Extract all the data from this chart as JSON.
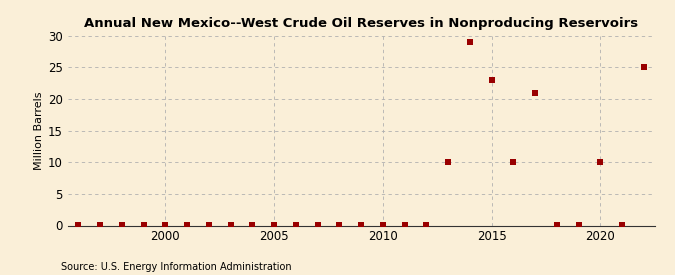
{
  "title": "Annual New Mexico--West Crude Oil Reserves in Nonproducing Reservoirs",
  "ylabel": "Million Barrels",
  "source": "Source: U.S. Energy Information Administration",
  "background_color": "#faefd8",
  "plot_bg_color": "#faefd8",
  "grid_color": "#b0b0b0",
  "marker_color": "#990000",
  "xlim": [
    1995.5,
    2022.5
  ],
  "ylim": [
    0,
    30
  ],
  "yticks": [
    0,
    5,
    10,
    15,
    20,
    25,
    30
  ],
  "xticks": [
    2000,
    2005,
    2010,
    2015,
    2020
  ],
  "years": [
    1996,
    1997,
    1998,
    1999,
    2000,
    2001,
    2002,
    2003,
    2004,
    2005,
    2006,
    2007,
    2008,
    2009,
    2010,
    2011,
    2012,
    2013,
    2014,
    2015,
    2016,
    2017,
    2018,
    2019,
    2020,
    2021,
    2022
  ],
  "values": [
    0.05,
    0.05,
    0.05,
    0.05,
    0.05,
    0.05,
    0.05,
    0.05,
    0.05,
    0.05,
    0.05,
    0.05,
    0.05,
    0.05,
    0.05,
    0.05,
    0.05,
    10.0,
    29.0,
    23.0,
    10.0,
    21.0,
    0.05,
    0.05,
    10.0,
    0.05,
    25.0
  ]
}
